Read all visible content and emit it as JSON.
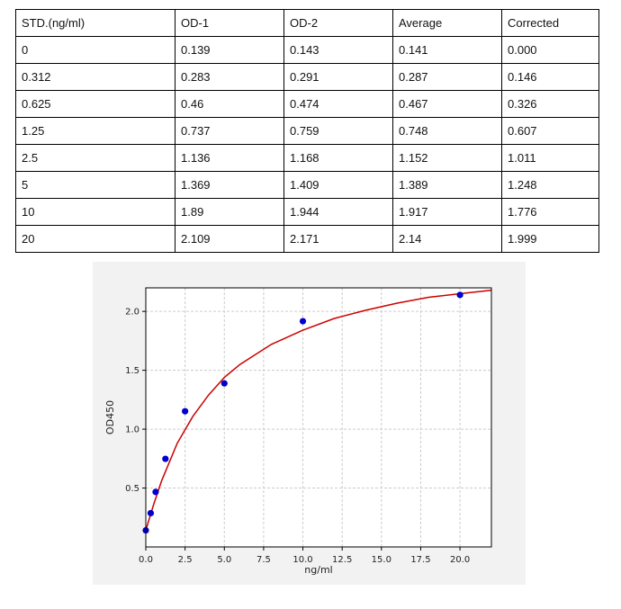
{
  "table": {
    "headers": [
      "STD.(ng/ml)",
      "OD-1",
      "OD-2",
      "Average",
      "Corrected"
    ],
    "rows": [
      [
        "0",
        "0.139",
        "0.143",
        "0.141",
        "0.000"
      ],
      [
        "0.312",
        "0.283",
        "0.291",
        "0.287",
        "0.146"
      ],
      [
        "0.625",
        "0.46",
        "0.474",
        "0.467",
        "0.326"
      ],
      [
        "1.25",
        "0.737",
        "0.759",
        "0.748",
        "0.607"
      ],
      [
        "2.5",
        "1.136",
        "1.168",
        "1.152",
        "1.011"
      ],
      [
        "5",
        "1.369",
        "1.409",
        "1.389",
        "1.248"
      ],
      [
        "10",
        "1.89",
        "1.944",
        "1.917",
        "1.776"
      ],
      [
        "20",
        "2.109",
        "2.171",
        "2.14",
        "1.999"
      ]
    ]
  },
  "chart_data": {
    "type": "scatter",
    "title": "",
    "xlabel": "ng/ml",
    "ylabel": "OD450",
    "xlim": [
      0,
      22
    ],
    "ylim": [
      0,
      2.2
    ],
    "xticks": [
      "0.0",
      "2.5",
      "5.0",
      "7.5",
      "10.0",
      "12.5",
      "15.0",
      "17.5",
      "20.0"
    ],
    "yticks": [
      "0.5",
      "1.0",
      "1.5",
      "2.0"
    ],
    "grid": true,
    "series": [
      {
        "type": "scatter",
        "color": "#0000cc",
        "x": [
          0,
          0.312,
          0.625,
          1.25,
          2.5,
          5,
          10,
          20
        ],
        "y": [
          0.141,
          0.287,
          0.467,
          0.748,
          1.152,
          1.389,
          1.917,
          2.14
        ]
      },
      {
        "type": "line",
        "color": "#cc0000",
        "x": [
          0,
          0.5,
          1,
          2,
          3,
          4,
          5,
          6,
          8,
          10,
          12,
          14,
          16,
          18,
          20,
          22
        ],
        "y": [
          0.141,
          0.36,
          0.56,
          0.88,
          1.11,
          1.29,
          1.44,
          1.55,
          1.72,
          1.84,
          1.94,
          2.01,
          2.07,
          2.12,
          2.15,
          2.18
        ]
      }
    ]
  }
}
